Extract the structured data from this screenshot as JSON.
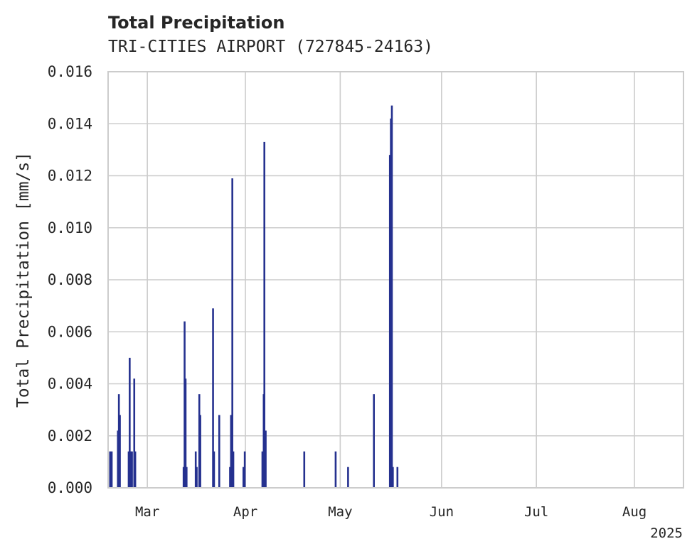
{
  "chart_data": {
    "type": "bar",
    "title": "Total Precipitation",
    "subtitle": "TRI-CITIES AIRPORT (727845-24163)",
    "xlabel": "",
    "ylabel": "Total Precipitation [mm/s]",
    "ylim": [
      0,
      0.016
    ],
    "yticks": [
      "0.000",
      "0.002",
      "0.004",
      "0.006",
      "0.008",
      "0.010",
      "0.012",
      "0.014",
      "0.016"
    ],
    "xlim_days": [
      0,
      176
    ],
    "xticks": [
      {
        "label": "Mar",
        "day": 12
      },
      {
        "label": "Apr",
        "day": 42
      },
      {
        "label": "May",
        "day": 71
      },
      {
        "label": "Jun",
        "day": 102
      },
      {
        "label": "Jul",
        "day": 131
      },
      {
        "label": "Aug",
        "day": 161
      }
    ],
    "x_offset_label": "2025",
    "x_unit": "days since Feb 17, 2025",
    "bar_color": "#25318f",
    "series": [
      {
        "name": "Total Precipitation",
        "points": [
          {
            "x": 0.6,
            "y": 0.0014
          },
          {
            "x": 0.9,
            "y": 0.0008
          },
          {
            "x": 1.1,
            "y": 0.0014
          },
          {
            "x": 3.0,
            "y": 0.0022
          },
          {
            "x": 3.3,
            "y": 0.0036
          },
          {
            "x": 3.6,
            "y": 0.0028
          },
          {
            "x": 6.3,
            "y": 0.0014
          },
          {
            "x": 6.6,
            "y": 0.005
          },
          {
            "x": 6.9,
            "y": 0.0014
          },
          {
            "x": 7.3,
            "y": 0.0014
          },
          {
            "x": 8.0,
            "y": 0.0042
          },
          {
            "x": 8.3,
            "y": 0.0014
          },
          {
            "x": 23.1,
            "y": 0.0008
          },
          {
            "x": 23.4,
            "y": 0.0064
          },
          {
            "x": 23.7,
            "y": 0.0042
          },
          {
            "x": 24.0,
            "y": 0.0008
          },
          {
            "x": 26.8,
            "y": 0.0014
          },
          {
            "x": 27.1,
            "y": 0.0008
          },
          {
            "x": 27.9,
            "y": 0.0036
          },
          {
            "x": 28.2,
            "y": 0.0028
          },
          {
            "x": 32.1,
            "y": 0.0069
          },
          {
            "x": 32.4,
            "y": 0.0014
          },
          {
            "x": 34.0,
            "y": 0.0028
          },
          {
            "x": 37.3,
            "y": 0.0008
          },
          {
            "x": 37.6,
            "y": 0.0028
          },
          {
            "x": 38.0,
            "y": 0.0119
          },
          {
            "x": 38.3,
            "y": 0.0014
          },
          {
            "x": 41.4,
            "y": 0.0008
          },
          {
            "x": 41.8,
            "y": 0.0014
          },
          {
            "x": 47.2,
            "y": 0.0014
          },
          {
            "x": 47.6,
            "y": 0.0036
          },
          {
            "x": 47.8,
            "y": 0.0133
          },
          {
            "x": 48.2,
            "y": 0.0022
          },
          {
            "x": 60.0,
            "y": 0.0014
          },
          {
            "x": 69.6,
            "y": 0.0014
          },
          {
            "x": 73.4,
            "y": 0.0008
          },
          {
            "x": 81.3,
            "y": 0.0036
          },
          {
            "x": 86.2,
            "y": 0.0128
          },
          {
            "x": 86.5,
            "y": 0.0142
          },
          {
            "x": 86.8,
            "y": 0.0147
          },
          {
            "x": 87.1,
            "y": 0.0008
          },
          {
            "x": 88.5,
            "y": 0.0008
          }
        ]
      }
    ]
  }
}
